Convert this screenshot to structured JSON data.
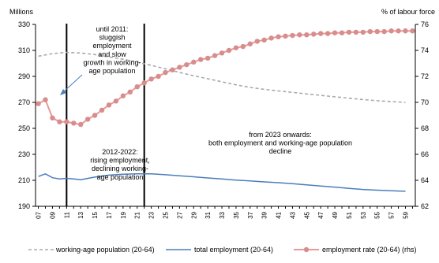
{
  "chart_data": {
    "type": "line",
    "y_left": {
      "unit_label": "Millions",
      "ylim": [
        190,
        330
      ],
      "ticks": [
        190,
        210,
        230,
        250,
        270,
        290,
        310,
        330
      ]
    },
    "y_right": {
      "unit_label": "% of labour force",
      "ylim": [
        62,
        76
      ],
      "ticks": [
        62,
        64,
        66,
        68,
        70,
        72,
        74,
        76
      ]
    },
    "x_ticks": [
      "07",
      "09",
      "11",
      "13",
      "15",
      "17",
      "19",
      "21",
      "23",
      "25",
      "27",
      "29",
      "31",
      "33",
      "35",
      "37",
      "39",
      "41",
      "43",
      "45",
      "47",
      "49",
      "51",
      "53",
      "55",
      "57",
      "59"
    ],
    "grid": false,
    "legend_position": "bottom",
    "vertical_markers": [
      2011,
      2022
    ],
    "annotations": [
      "until 2011:\nsluggish\nemployment\nand slow\ngrowth in working-\nage population",
      "2012-2022:\nrising  employment,\ndeclining working-\nage population",
      "from 2023 onwards:\nboth employment and working-age population\ndecline"
    ],
    "series": [
      {
        "name": "working-age population (20-64)",
        "axis": "left",
        "color": "#aaaaaa",
        "style": "dashed",
        "x": [
          2007,
          2009,
          2011,
          2013,
          2015,
          2017,
          2019,
          2021,
          2023,
          2025,
          2027,
          2029,
          2031,
          2033,
          2035,
          2037,
          2039,
          2041,
          2043,
          2045,
          2047,
          2049,
          2051,
          2053,
          2055,
          2057,
          2059
        ],
        "values": [
          305.5,
          307.5,
          308.5,
          308,
          306.8,
          305,
          303.2,
          301,
          298.5,
          295.8,
          293,
          290.5,
          288.2,
          285.8,
          283.5,
          281.5,
          280,
          278.8,
          277.7,
          276.5,
          275.4,
          274.3,
          273.2,
          272.2,
          271.3,
          270.6,
          270
        ]
      },
      {
        "name": "total employment (20-64)",
        "axis": "left",
        "color": "#4a7ebb",
        "style": "solid",
        "x": [
          2007,
          2008,
          2009,
          2010,
          2011,
          2012,
          2013,
          2015,
          2017,
          2019,
          2021,
          2023,
          2025,
          2027,
          2029,
          2031,
          2033,
          2035,
          2037,
          2039,
          2041,
          2043,
          2045,
          2047,
          2049,
          2051,
          2053,
          2055,
          2057,
          2059
        ],
        "values": [
          213,
          215,
          212,
          211,
          211.5,
          211,
          210.5,
          212.5,
          214,
          214.7,
          215,
          215,
          214.3,
          213.5,
          212.7,
          211.8,
          211,
          210.2,
          209.5,
          208.8,
          208.2,
          207.4,
          206.5,
          205.6,
          204.8,
          203.8,
          203,
          202.4,
          202,
          201.6
        ]
      },
      {
        "name": "employment rate (20-64) (rhs)",
        "axis": "right",
        "color": "#e69a9a",
        "marker_color": "#d98c8c",
        "style": "solid-markers",
        "x": [
          2007,
          2008,
          2009,
          2010,
          2011,
          2012,
          2013,
          2014,
          2015,
          2016,
          2017,
          2018,
          2019,
          2020,
          2021,
          2022,
          2023,
          2024,
          2025,
          2026,
          2027,
          2028,
          2029,
          2030,
          2031,
          2032,
          2033,
          2034,
          2035,
          2036,
          2037,
          2038,
          2039,
          2040,
          2041,
          2042,
          2043,
          2044,
          2045,
          2046,
          2047,
          2048,
          2049,
          2050,
          2051,
          2052,
          2053,
          2054,
          2055,
          2056,
          2057,
          2058,
          2059,
          2060
        ],
        "values": [
          69.9,
          70.2,
          68.8,
          68.5,
          68.5,
          68.4,
          68.3,
          68.7,
          69.0,
          69.4,
          69.8,
          70.1,
          70.5,
          70.8,
          71.2,
          71.5,
          71.8,
          72.0,
          72.3,
          72.5,
          72.7,
          72.9,
          73.1,
          73.3,
          73.4,
          73.6,
          73.8,
          74.0,
          74.2,
          74.3,
          74.5,
          74.7,
          74.8,
          74.95,
          75.05,
          75.1,
          75.15,
          75.2,
          75.2,
          75.25,
          75.3,
          75.3,
          75.35,
          75.35,
          75.4,
          75.4,
          75.4,
          75.45,
          75.45,
          75.45,
          75.5,
          75.5,
          75.5,
          75.5
        ]
      }
    ]
  }
}
